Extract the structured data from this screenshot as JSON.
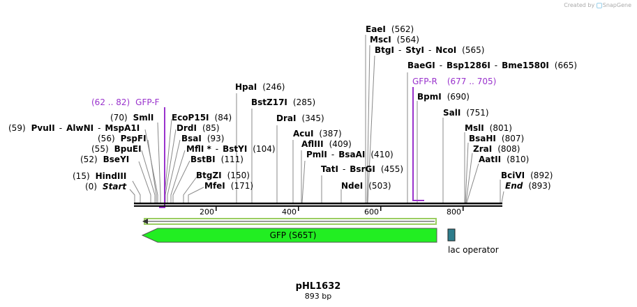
{
  "credit": {
    "prefix": "Created by",
    "brand": "SnapGene"
  },
  "plasmid": {
    "name": "pHL1632",
    "size": "893 bp"
  },
  "colors": {
    "backbone": "#000000",
    "gfp_fill": "#22ee22",
    "gfp_stroke": "#555555",
    "lac": "#2e7d8c",
    "primer": "#9932cc",
    "orf": "#88cc44"
  },
  "ticks": [
    "200",
    "400",
    "600",
    "800"
  ],
  "sites": [
    {
      "id": "start",
      "name": "Start",
      "pos": "(0)",
      "italic": true
    },
    {
      "id": "hindiii",
      "name": "HindIII",
      "pos": "(15)"
    },
    {
      "id": "bseyi",
      "name": "BseYI",
      "pos": "(52)"
    },
    {
      "id": "bpuei",
      "name": "BpuEI",
      "pos": "(55)"
    },
    {
      "id": "pspfi",
      "name": "PspFI",
      "pos": "(56)"
    },
    {
      "id": "pvuii",
      "name": "PvuII",
      "pos": "(59)",
      "extra1": "AlwNI",
      "extra2": "MspA1I"
    },
    {
      "id": "smli",
      "name": "SmlI",
      "pos": "(70)"
    },
    {
      "id": "ecop15i",
      "name": "EcoP15I",
      "pos": "(84)"
    },
    {
      "id": "drdi",
      "name": "DrdI",
      "pos": "(85)"
    },
    {
      "id": "bsai",
      "name": "BsaI",
      "pos": "(93)"
    },
    {
      "id": "mflI",
      "name": "MflI *",
      "pos": "(104)",
      "extra1": "BstYI"
    },
    {
      "id": "bstbi",
      "name": "BstBI",
      "pos": "(111)"
    },
    {
      "id": "btgzi",
      "name": "BtgZI",
      "pos": "(150)"
    },
    {
      "id": "mfei",
      "name": "MfeI",
      "pos": "(171)"
    },
    {
      "id": "hpai",
      "name": "HpaI",
      "pos": "(246)"
    },
    {
      "id": "bstz17i",
      "name": "BstZ17I",
      "pos": "(285)"
    },
    {
      "id": "drai",
      "name": "DraI",
      "pos": "(345)"
    },
    {
      "id": "acui",
      "name": "AcuI",
      "pos": "(387)"
    },
    {
      "id": "afliii",
      "name": "AflIII",
      "pos": "(409)"
    },
    {
      "id": "pmli",
      "name": "PmlI",
      "pos": "(410)",
      "extra1": "BsaAI"
    },
    {
      "id": "tati",
      "name": "TatI",
      "pos": "(455)",
      "extra1": "BsrGI"
    },
    {
      "id": "ndei",
      "name": "NdeI",
      "pos": "(503)"
    },
    {
      "id": "eaei",
      "name": "EaeI",
      "pos": "(562)"
    },
    {
      "id": "msci",
      "name": "MscI",
      "pos": "(564)"
    },
    {
      "id": "btgi",
      "name": "BtgI",
      "pos": "(565)",
      "extra1": "StyI",
      "extra2": "NcoI"
    },
    {
      "id": "baegi",
      "name": "BaeGI",
      "pos": "(665)",
      "extra1": "Bsp1286I",
      "extra2": "Bme1580I"
    },
    {
      "id": "bpmi",
      "name": "BpmI",
      "pos": "(690)"
    },
    {
      "id": "sali",
      "name": "SalI",
      "pos": "(751)"
    },
    {
      "id": "msli",
      "name": "MslI",
      "pos": "(801)"
    },
    {
      "id": "bsahi",
      "name": "BsaHI",
      "pos": "(807)"
    },
    {
      "id": "zrai",
      "name": "ZraI",
      "pos": "(808)"
    },
    {
      "id": "aatii",
      "name": "AatII",
      "pos": "(810)"
    },
    {
      "id": "bcivi",
      "name": "BciVI",
      "pos": "(892)"
    },
    {
      "id": "end",
      "name": "End",
      "pos": "(893)",
      "italic": true
    }
  ],
  "primers": [
    {
      "id": "gfp-f",
      "name": "GFP-F",
      "range": "(62 .. 82)"
    },
    {
      "id": "gfp-r",
      "name": "GFP-R",
      "range": "(677 .. 705)"
    }
  ],
  "features": [
    {
      "id": "gfp",
      "label": "GFP (S65T)"
    },
    {
      "id": "lac",
      "label": "lac operator"
    }
  ]
}
